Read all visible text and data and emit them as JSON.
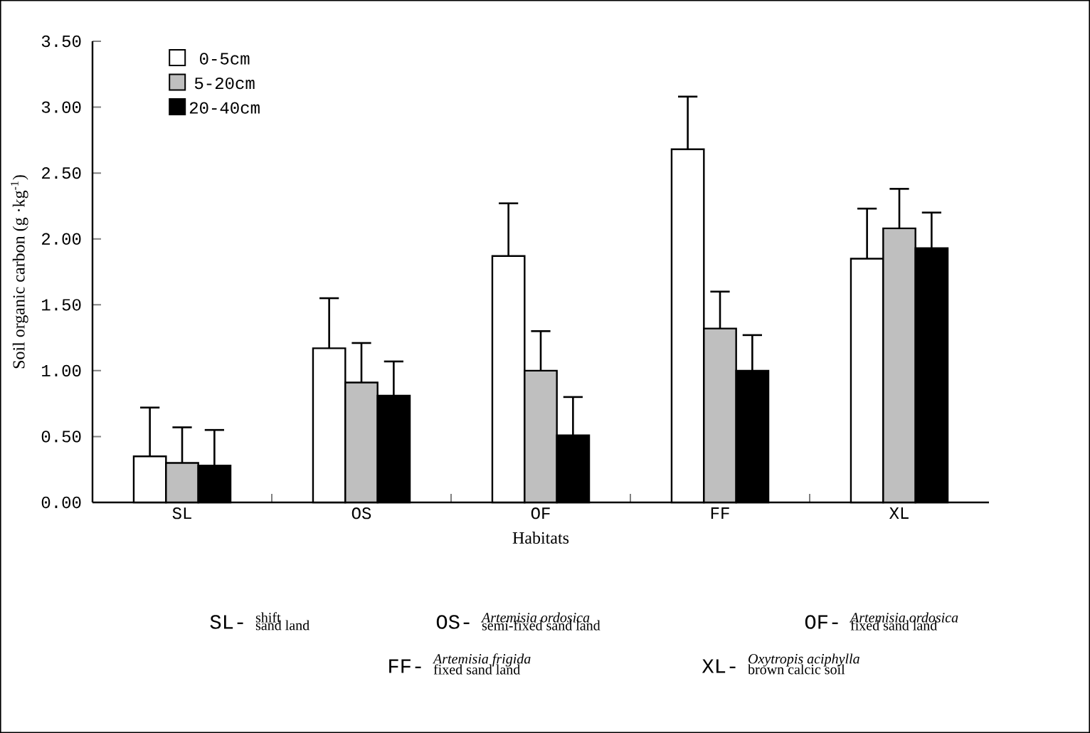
{
  "chart_data": {
    "type": "bar",
    "xlabel": "Habitats",
    "ylabel": "Soil organic carbon (g ·kg$^{-1}$)",
    "categories": [
      "SL",
      "OS",
      "OF",
      "FF",
      "XL"
    ],
    "series": [
      {
        "name": "0-5cm",
        "color": "#ffffff",
        "values": [
          0.35,
          1.17,
          1.87,
          2.68,
          1.85
        ],
        "errors": [
          [
            0.35,
            0.72
          ],
          [
            1.17,
            1.55
          ],
          [
            1.87,
            2.27
          ],
          [
            2.68,
            3.08
          ],
          [
            1.85,
            2.23
          ]
        ]
      },
      {
        "name": "5-20cm",
        "color": "#bfbfbf",
        "values": [
          0.3,
          0.91,
          1.0,
          1.32,
          2.08
        ],
        "errors": [
          [
            0.3,
            0.57
          ],
          [
            0.91,
            1.21
          ],
          [
            1.0,
            1.3
          ],
          [
            1.32,
            1.6
          ],
          [
            2.08,
            2.38
          ]
        ]
      },
      {
        "name": "20-40cm",
        "color": "#000000",
        "values": [
          0.28,
          0.81,
          0.51,
          1.0,
          1.93
        ],
        "errors": [
          [
            0.28,
            0.55
          ],
          [
            0.81,
            1.07
          ],
          [
            0.51,
            0.8
          ],
          [
            1.0,
            1.27
          ],
          [
            1.93,
            2.2
          ]
        ]
      }
    ],
    "ylim": [
      0,
      3.5
    ],
    "yticks": [
      {
        "value": 0,
        "label": "0.00"
      },
      {
        "value": 0.5,
        "label": "0.50"
      },
      {
        "value": 1,
        "label": "1.00"
      },
      {
        "value": 1.5,
        "label": "1.50"
      },
      {
        "value": 2,
        "label": "2.00"
      },
      {
        "value": 2.5,
        "label": "2.50"
      },
      {
        "value": 3,
        "label": "3.00"
      },
      {
        "value": 3.5,
        "label": "3.50"
      }
    ],
    "legend": "top left",
    "annotations": [
      "SL-",
      "shift",
      "sand land",
      "OS-",
      "*Artemisia ordosica*",
      "semi-fixed  sand land",
      "OF-",
      "*Artemisia ordosica*",
      "fixed  sand land",
      "FF-",
      "*Artemisia frigida*",
      "fixed  sand land",
      "XL-",
      "*Oxytropis aciphylla*",
      "brown calcic soil"
    ]
  }
}
